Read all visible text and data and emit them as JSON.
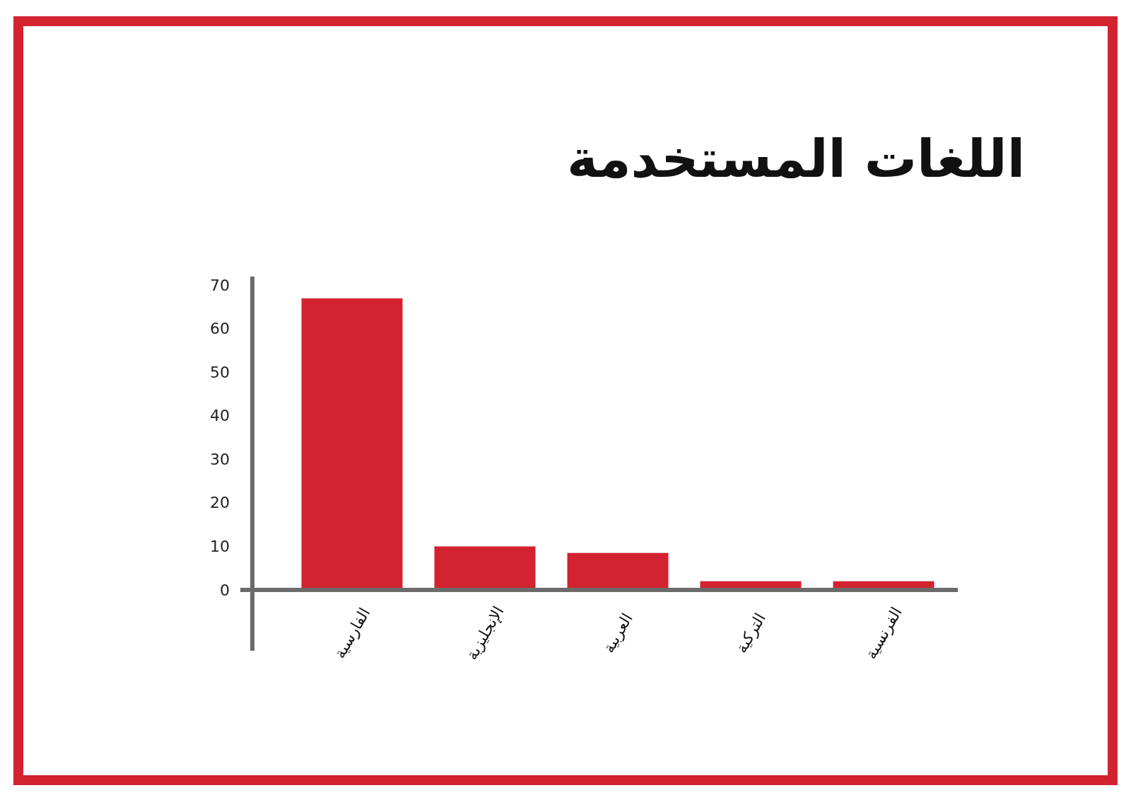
{
  "chart_data": {
    "type": "bar",
    "title": "اللغات المستخدمة",
    "categories": [
      "الفارسية",
      "الإنجليزية",
      "العربية",
      "التركية",
      "الفرنسية"
    ],
    "values": [
      67,
      10,
      8.5,
      2,
      2
    ],
    "color": "#d32330",
    "ylim": [
      0,
      72
    ],
    "yticks": [
      0,
      10,
      20,
      30,
      40,
      50,
      60,
      70
    ]
  }
}
